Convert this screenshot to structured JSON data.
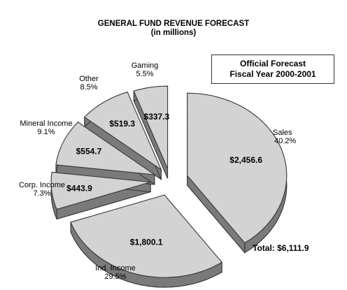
{
  "chart_data": {
    "type": "pie",
    "title": "GENERAL FUND REVENUE FORECAST",
    "subtitle": "(in millions)",
    "box_lines": [
      "Official Forecast",
      "Fiscal Year 2000-2001"
    ],
    "total_label": "Total: $6,111.9",
    "slices": [
      {
        "name": "Sales",
        "value": 2456.6,
        "value_label": "$2,456.6",
        "percent": 40.2,
        "percent_label": "40.2%"
      },
      {
        "name": "Ind. Income",
        "value": 1800.1,
        "value_label": "$1,800.1",
        "percent": 29.5,
        "percent_label": "29.5%"
      },
      {
        "name": "Corp. Income",
        "value": 443.9,
        "value_label": "$443.9",
        "percent": 7.3,
        "percent_label": "7.3%"
      },
      {
        "name": "Mineral Income",
        "value": 554.7,
        "value_label": "$554.7",
        "percent": 9.1,
        "percent_label": "9.1%"
      },
      {
        "name": "Other",
        "value": 519.3,
        "value_label": "$519.3",
        "percent": 8.5,
        "percent_label": "8.5%"
      },
      {
        "name": "Gaming",
        "value": 337.3,
        "value_label": "$337.3",
        "percent": 5.5,
        "percent_label": "5.5%"
      }
    ],
    "colors": {
      "top": "#d3d3d3",
      "side": "#7a7a7a",
      "edge": "#333333"
    }
  }
}
